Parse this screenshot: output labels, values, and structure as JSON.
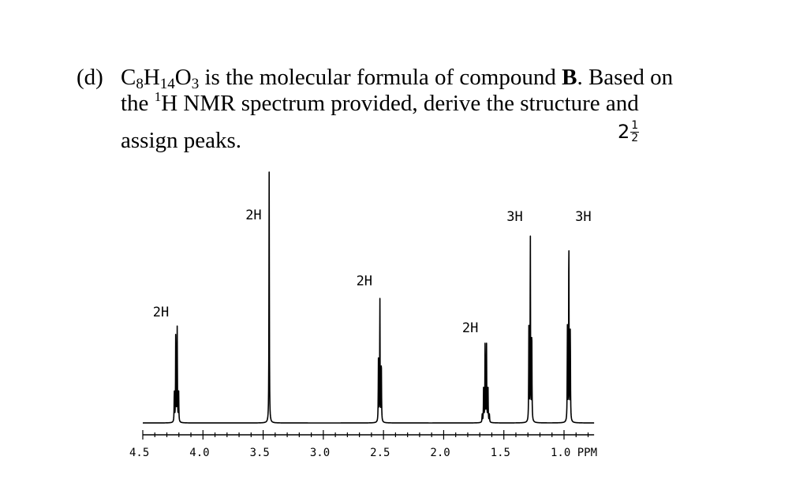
{
  "question": {
    "label": "(d)",
    "line1_a": "C",
    "line1_c": "is the molecular formula of compound ",
    "compound": "B",
    "line1_d": ". Based on",
    "line2_a": "the ",
    "line2_iso": "1",
    "line2_b": "H NMR spectrum provided, derive the structure and",
    "line3": "assign peaks.",
    "formula": [
      {
        "el": "C",
        "n": "8"
      },
      {
        "el": "H",
        "n": "14"
      },
      {
        "el": "O",
        "n": "3"
      }
    ]
  },
  "marks": {
    "whole": "2",
    "numerator": "1",
    "denominator": "2"
  },
  "chart_data": {
    "type": "line",
    "title": "",
    "xlabel": "PPM",
    "ylabel": "",
    "xlim": [
      4.5,
      0.75
    ],
    "x_reversed": true,
    "grid": false,
    "x_ticks": [
      4.5,
      4.0,
      3.5,
      3.0,
      2.5,
      2.0,
      1.5,
      1.0
    ],
    "x_tick_labels": [
      "4.5",
      "4.0",
      "3.5",
      "3.0",
      "2.5",
      "2.0",
      "1.5",
      "1.0 PPM"
    ],
    "peaks": [
      {
        "shift": 4.22,
        "multiplicity": "quartet",
        "integration": "2H"
      },
      {
        "shift": 3.45,
        "multiplicity": "singlet",
        "integration": "2H"
      },
      {
        "shift": 2.53,
        "multiplicity": "triplet",
        "integration": "2H"
      },
      {
        "shift": 1.65,
        "multiplicity": "sextet",
        "integration": "2H"
      },
      {
        "shift": 1.28,
        "multiplicity": "triplet",
        "integration": "3H"
      },
      {
        "shift": 0.96,
        "multiplicity": "triplet",
        "integration": "3H"
      }
    ]
  }
}
